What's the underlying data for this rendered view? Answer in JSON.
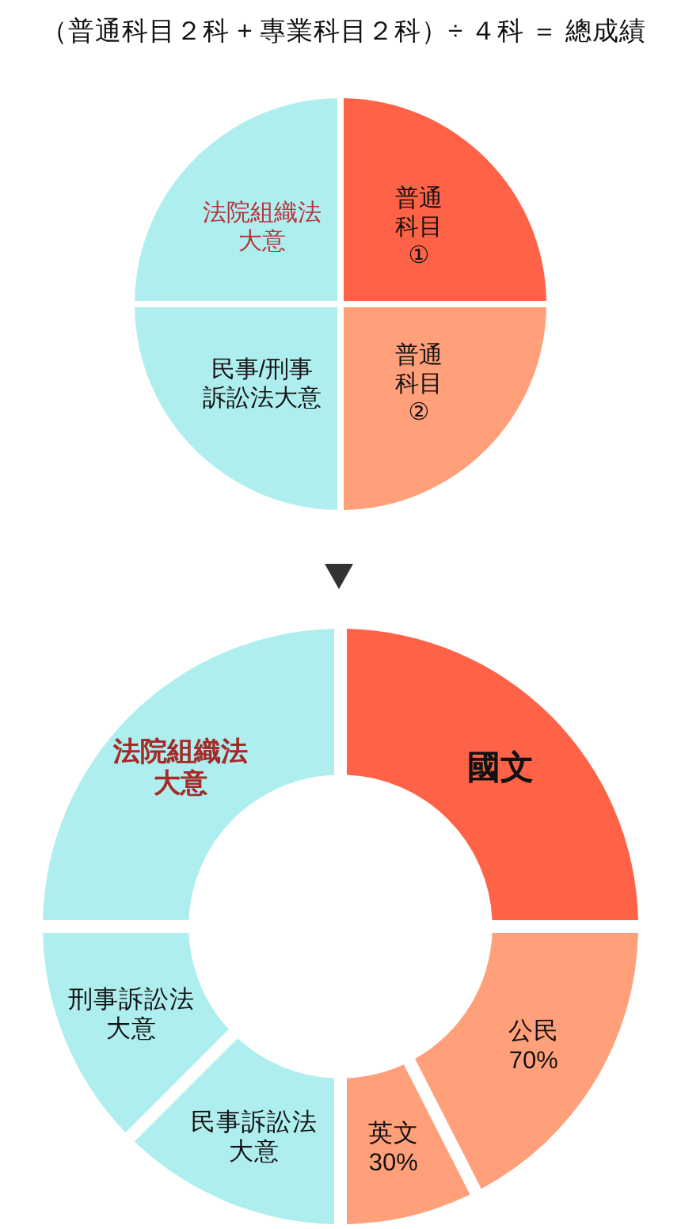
{
  "chart_data": [
    {
      "type": "pie",
      "title": "（普通科目２科 + 專業科目２科）÷ ４科 ＝ 總成績",
      "categories": [
        "普通科目①",
        "普通科目②",
        "民事/刑事訴訟法大意",
        "法院組織法大意"
      ],
      "values": [
        25,
        25,
        25,
        25
      ],
      "colors": [
        "#ff6347",
        "#ffa07a",
        "#afeeee",
        "#afeeee"
      ]
    },
    {
      "type": "donut",
      "categories": [
        "國文",
        "公民70%",
        "英文30%",
        "民事訴訟法大意",
        "刑事訴訟法大意",
        "法院組織法大意"
      ],
      "values": [
        25,
        17.5,
        7.5,
        12.5,
        12.5,
        25
      ],
      "colors": [
        "#ff6347",
        "#ffa07a",
        "#ffa07a",
        "#afeeee",
        "#afeeee",
        "#afeeee"
      ]
    }
  ]
}
